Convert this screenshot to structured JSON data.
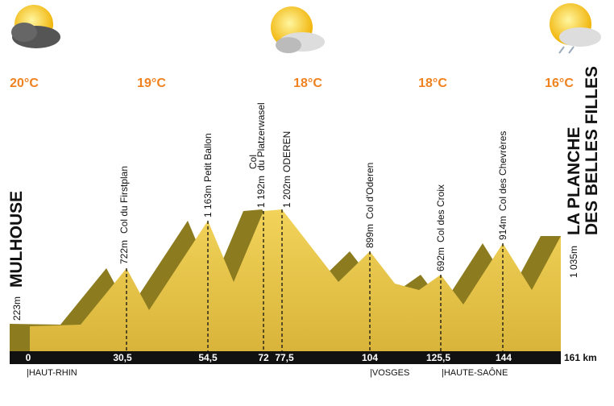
{
  "weather": {
    "temperatures": [
      "20°C",
      "19°C",
      "18°C",
      "18°C",
      "16°C"
    ]
  },
  "start": {
    "altitude": "223m",
    "name": "MULHOUSE"
  },
  "finish": {
    "name_lines": [
      "LA PLANCHE",
      "DES BELLES FILLES"
    ],
    "altitude": "1 035m"
  },
  "points": [
    {
      "altitude": "722m",
      "name": "Col du Firstplan"
    },
    {
      "altitude": "1 163m",
      "name": "Petit Ballon"
    },
    {
      "altitude": "1 192m",
      "name_lines": [
        "Col",
        "du Platzerwasel"
      ]
    },
    {
      "altitude": "1 202m",
      "name": "ODEREN"
    },
    {
      "altitude": "899m",
      "name": "Col d'Oderen"
    },
    {
      "altitude": "692m",
      "name": "Col des Croix"
    },
    {
      "altitude": "914m",
      "name": "Col des Chevrères"
    }
  ],
  "km_markers": [
    "0",
    "30,5",
    "54,5",
    "72",
    "77,5",
    "104",
    "125,5",
    "144",
    "161 km"
  ],
  "regions": [
    "|HAUT-RHIN",
    "|VOSGES",
    "|HAUTE-SAÔNE"
  ]
}
